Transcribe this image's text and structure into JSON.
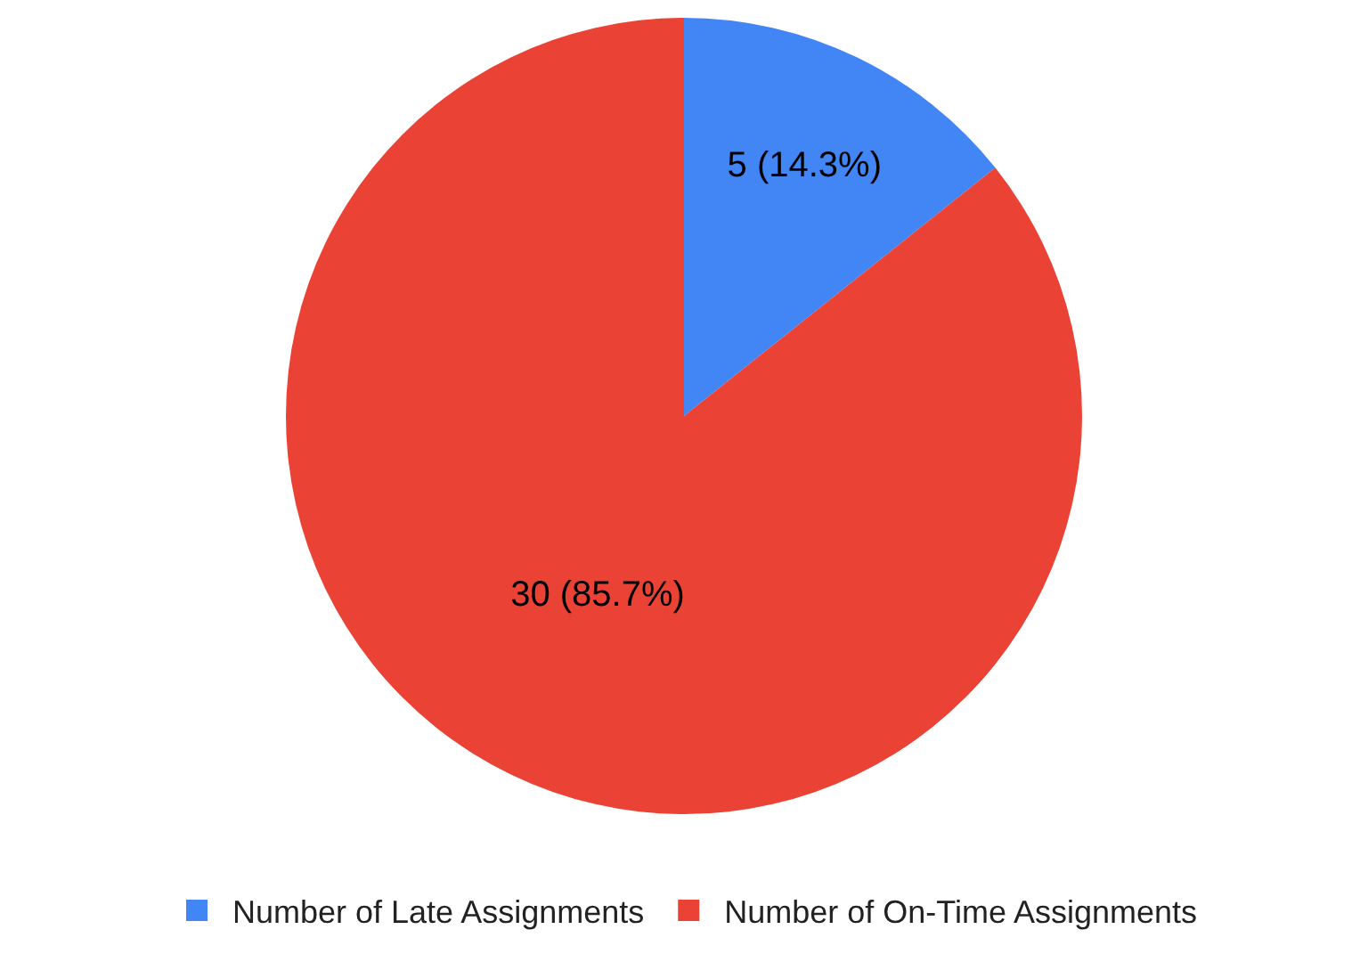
{
  "chart_data": {
    "type": "pie",
    "categories": [
      "Number of Late Assignments",
      "Number of On-Time Assignments"
    ],
    "values": [
      5,
      30
    ],
    "colors": [
      "#4285f4",
      "#ea4335"
    ],
    "value_labels": [
      "5 (14.3%)",
      "30 (85.7%)"
    ],
    "legend": "bottom"
  }
}
